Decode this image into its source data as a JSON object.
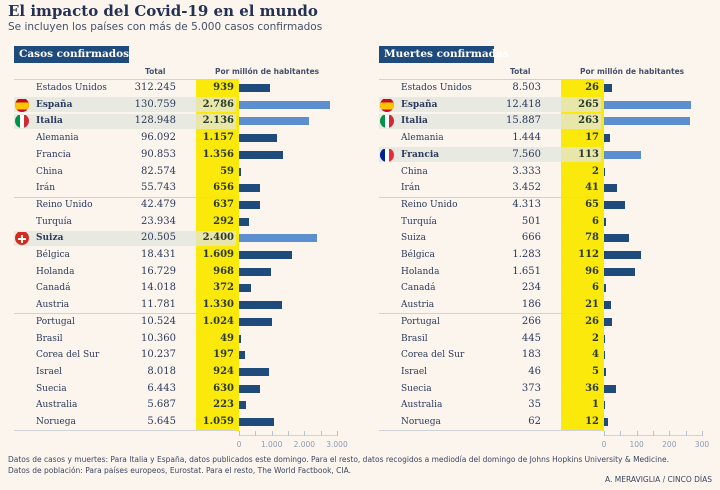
{
  "title": "El impacto del Covid-19 en el mundo",
  "subtitle": "Se incluyen los países con más de 5.000 casos confirmados",
  "colors": {
    "background": "#fcf5ee",
    "header": "#1f4a7c",
    "bar": "#1f4a7c",
    "bar_highlight": "#5b8fcf",
    "band": "#fbe90c",
    "row_highlight": "#e2e4dc"
  },
  "chart_data": [
    {
      "type": "bar",
      "orientation": "horizontal",
      "title": "Casos confirmados",
      "columns": [
        "Total",
        "Por millón de habitantes"
      ],
      "xlim": [
        0,
        3000
      ],
      "xticks": [
        0,
        500,
        1000,
        1500,
        2000,
        2500,
        3000
      ],
      "xtick_labels": [
        "0",
        "1.000",
        "2.000",
        "3.000"
      ],
      "rows": [
        {
          "name": "Estados Unidos",
          "total": "312.245",
          "per_million": 939
        },
        {
          "name": "España",
          "total": "130.759",
          "per_million": 2786,
          "highlight": true,
          "flag": "spain-flag"
        },
        {
          "name": "Italia",
          "total": "128.948",
          "per_million": 2136,
          "highlight": true,
          "flag": "italy-flag"
        },
        {
          "name": "Alemania",
          "total": "96.092",
          "per_million": 1157
        },
        {
          "name": "Francia",
          "total": "90.853",
          "per_million": 1356
        },
        {
          "name": "China",
          "total": "82.574",
          "per_million": 59
        },
        {
          "name": "Irán",
          "total": "55.743",
          "per_million": 656
        },
        {
          "name": "Reino Unido",
          "total": "42.479",
          "per_million": 637
        },
        {
          "name": "Turquía",
          "total": "23.934",
          "per_million": 292
        },
        {
          "name": "Suiza",
          "total": "20.505",
          "per_million": 2400,
          "highlight": true,
          "flag": "switzerland-flag"
        },
        {
          "name": "Bélgica",
          "total": "18.431",
          "per_million": 1609
        },
        {
          "name": "Holanda",
          "total": "16.729",
          "per_million": 968
        },
        {
          "name": "Canadá",
          "total": "14.018",
          "per_million": 372
        },
        {
          "name": "Austria",
          "total": "11.781",
          "per_million": 1330
        },
        {
          "name": "Portugal",
          "total": "10.524",
          "per_million": 1024
        },
        {
          "name": "Brasil",
          "total": "10.360",
          "per_million": 49
        },
        {
          "name": "Corea del Sur",
          "total": "10.237",
          "per_million": 197
        },
        {
          "name": "Israel",
          "total": "8.018",
          "per_million": 924
        },
        {
          "name": "Suecia",
          "total": "6.443",
          "per_million": 630
        },
        {
          "name": "Australia",
          "total": "5.687",
          "per_million": 223
        },
        {
          "name": "Noruega",
          "total": "5.645",
          "per_million": 1059
        }
      ]
    },
    {
      "type": "bar",
      "orientation": "horizontal",
      "title": "Muertes confirmadas",
      "columns": [
        "Total",
        "Por millón de habitantes"
      ],
      "xlim": [
        0,
        300
      ],
      "xticks": [
        0,
        50,
        100,
        150,
        200,
        250,
        300
      ],
      "xtick_labels": [
        "0",
        "100",
        "200",
        "300"
      ],
      "rows": [
        {
          "name": "Estados Unidos",
          "total": "8.503",
          "per_million": 26
        },
        {
          "name": "España",
          "total": "12.418",
          "per_million": 265,
          "highlight": true,
          "flag": "spain-flag"
        },
        {
          "name": "Italia",
          "total": "15.887",
          "per_million": 263,
          "highlight": true,
          "flag": "italy-flag"
        },
        {
          "name": "Alemania",
          "total": "1.444",
          "per_million": 17
        },
        {
          "name": "Francia",
          "total": "7.560",
          "per_million": 113,
          "highlight": true,
          "flag": "france-flag"
        },
        {
          "name": "China",
          "total": "3.333",
          "per_million": 2
        },
        {
          "name": "Irán",
          "total": "3.452",
          "per_million": 41
        },
        {
          "name": "Reino Unido",
          "total": "4.313",
          "per_million": 65
        },
        {
          "name": "Turquía",
          "total": "501",
          "per_million": 6
        },
        {
          "name": "Suiza",
          "total": "666",
          "per_million": 78
        },
        {
          "name": "Bélgica",
          "total": "1.283",
          "per_million": 112
        },
        {
          "name": "Holanda",
          "total": "1.651",
          "per_million": 96
        },
        {
          "name": "Canadá",
          "total": "234",
          "per_million": 6
        },
        {
          "name": "Austria",
          "total": "186",
          "per_million": 21
        },
        {
          "name": "Portugal",
          "total": "266",
          "per_million": 26
        },
        {
          "name": "Brasil",
          "total": "445",
          "per_million": 2
        },
        {
          "name": "Corea del Sur",
          "total": "183",
          "per_million": 4
        },
        {
          "name": "Israel",
          "total": "46",
          "per_million": 5
        },
        {
          "name": "Suecia",
          "total": "373",
          "per_million": 36
        },
        {
          "name": "Australia",
          "total": "35",
          "per_million": 1
        },
        {
          "name": "Noruega",
          "total": "62",
          "per_million": 12
        }
      ]
    }
  ],
  "notes": [
    "Datos de casos y muertes: Para Italia y España, datos publicados este domingo. Para el resto, datos recogidos a mediodía del domingo de Johns Hopkins University & Medicine.",
    "Datos de población: Para países europeos, Eurostat. Para el resto,  The World Factbook, CIA."
  ],
  "credit": "A. MERAVIGLIA / CINCO DÍAS"
}
